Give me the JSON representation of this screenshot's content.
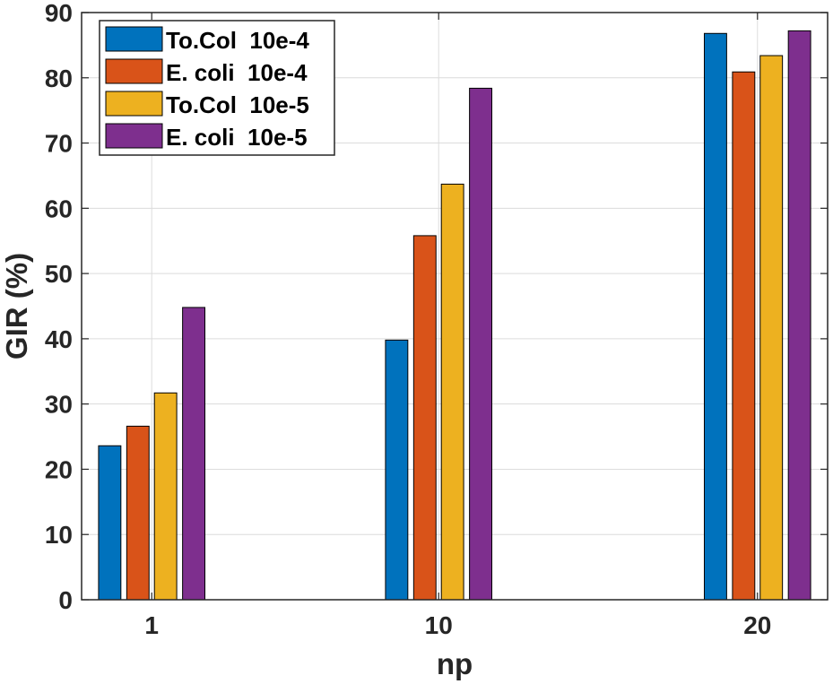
{
  "chart_data": {
    "type": "bar",
    "title": "",
    "xlabel": "np",
    "ylabel": "GIR (%)",
    "categories": [
      "1",
      "10",
      "20"
    ],
    "x_positions": [
      1,
      10,
      20
    ],
    "xlim": [
      -1.2,
      22.2
    ],
    "ylim": [
      0,
      90
    ],
    "yticks": [
      0,
      10,
      20,
      30,
      40,
      50,
      60,
      70,
      80,
      90
    ],
    "grid": true,
    "legend_position": "top-left",
    "series": [
      {
        "name": "To.Col  10e-4",
        "color": "#0072BD",
        "values": [
          23.6,
          39.8,
          86.8
        ]
      },
      {
        "name": "E. coli  10e-4",
        "color": "#D95319",
        "values": [
          26.6,
          55.8,
          80.9
        ]
      },
      {
        "name": "To.Col  10e-5",
        "color": "#EDB120",
        "values": [
          31.7,
          63.7,
          83.4
        ]
      },
      {
        "name": "E. coli  10e-5",
        "color": "#7E2F8E",
        "values": [
          44.8,
          78.4,
          87.2
        ]
      }
    ]
  }
}
